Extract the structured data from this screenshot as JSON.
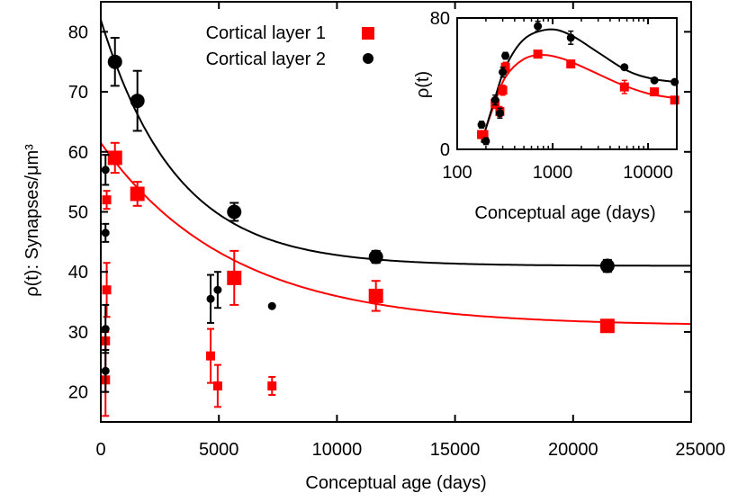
{
  "chart_data": [
    {
      "type": "scatter",
      "role": "main",
      "xlabel": "Conceptual age (days)",
      "ylabel": "ρ(t): Synapses/μm³",
      "xlim": [
        0,
        25000
      ],
      "ylim": [
        15,
        85
      ],
      "xticks": [
        0,
        5000,
        10000,
        15000,
        20000,
        25000
      ],
      "yticks": [
        20,
        30,
        40,
        50,
        60,
        70,
        80
      ],
      "grid": false,
      "legend_position": "top",
      "series": [
        {
          "name": "Cortical layer 1",
          "color": "#ff0000",
          "marker": "square",
          "points": [
            {
              "x": 200,
              "y": 22,
              "err": 6.0,
              "size": "small"
            },
            {
              "x": 200,
              "y": 28.5,
              "err": 1.5,
              "size": "small"
            },
            {
              "x": 250,
              "y": 37,
              "err": 4.5,
              "size": "small"
            },
            {
              "x": 250,
              "y": 52,
              "err": 1.5,
              "size": "small"
            },
            {
              "x": 4650,
              "y": 26,
              "err": 4.5,
              "size": "small"
            },
            {
              "x": 4950,
              "y": 21,
              "err": 3.5,
              "size": "small"
            },
            {
              "x": 7250,
              "y": 21,
              "err": 1.5,
              "size": "small"
            },
            {
              "x": 600,
              "y": 59,
              "err": 2.5,
              "size": "large"
            },
            {
              "x": 1550,
              "y": 53,
              "err": 2.0,
              "size": "large"
            },
            {
              "x": 5650,
              "y": 39,
              "err": 4.5,
              "size": "large"
            },
            {
              "x": 11650,
              "y": 36,
              "err": 2.5,
              "size": "large"
            },
            {
              "x": 21450,
              "y": 31,
              "err": 1.0,
              "size": "large"
            }
          ],
          "fit": {
            "asymptote": 31,
            "amplitude": 30.5,
            "decay_days": 5500
          }
        },
        {
          "name": "Cortical layer 2",
          "color": "#000000",
          "marker": "circle",
          "points": [
            {
              "x": 200,
              "y": 23.5,
              "err": 3.5,
              "size": "small"
            },
            {
              "x": 200,
              "y": 30.5,
              "err": 4.0,
              "size": "small"
            },
            {
              "x": 200,
              "y": 46.5,
              "err": 1.5,
              "size": "small"
            },
            {
              "x": 200,
              "y": 57,
              "err": 2.5,
              "size": "small"
            },
            {
              "x": 4650,
              "y": 35.5,
              "err": 4.0,
              "size": "small"
            },
            {
              "x": 4950,
              "y": 37,
              "err": 3.0,
              "size": "small"
            },
            {
              "x": 7250,
              "y": 34.3,
              "err": 0,
              "size": "small"
            },
            {
              "x": 600,
              "y": 75,
              "err": 4.0,
              "size": "large"
            },
            {
              "x": 1550,
              "y": 68.5,
              "err": 5.0,
              "size": "large"
            },
            {
              "x": 5650,
              "y": 50,
              "err": 1.5,
              "size": "large"
            },
            {
              "x": 11650,
              "y": 42.5,
              "err": 1.0,
              "size": "large"
            },
            {
              "x": 21450,
              "y": 41,
              "err": 1.0,
              "size": "large"
            }
          ],
          "fit": {
            "asymptote": 41,
            "amplitude": 41,
            "decay_days": 3200
          }
        }
      ]
    },
    {
      "type": "scatter",
      "role": "inset",
      "xlabel": "Conceptual age (days)",
      "ylabel": "ρ(t)",
      "xscale": "log",
      "xlim": [
        100,
        20000
      ],
      "ylim": [
        0,
        80
      ],
      "xticks": [
        100,
        1000,
        10000
      ],
      "xticklabels": [
        "100",
        "1000",
        "10000"
      ],
      "yticks": [
        0,
        80
      ],
      "grid": false,
      "series": [
        {
          "name": "Cortical layer 1",
          "color": "#ff0000",
          "marker": "square",
          "points": [
            {
              "x": 180,
              "y": 9,
              "err": 2
            },
            {
              "x": 190,
              "y": 9,
              "err": 1
            },
            {
              "x": 250,
              "y": 28,
              "err": 3
            },
            {
              "x": 280,
              "y": 23,
              "err": 3
            },
            {
              "x": 300,
              "y": 36,
              "err": 3
            },
            {
              "x": 320,
              "y": 50,
              "err": 3
            },
            {
              "x": 700,
              "y": 58,
              "err": 2
            },
            {
              "x": 1550,
              "y": 52,
              "err": 2
            },
            {
              "x": 5650,
              "y": 38,
              "err": 4
            },
            {
              "x": 11650,
              "y": 35,
              "err": 2
            },
            {
              "x": 19000,
              "y": 30,
              "err": 1
            }
          ],
          "fit": [
            [
              180,
              5
            ],
            [
              240,
              26
            ],
            [
              320,
              44
            ],
            [
              500,
              55
            ],
            [
              800,
              57.5
            ],
            [
              1300,
              55
            ],
            [
              2500,
              48
            ],
            [
              5000,
              40
            ],
            [
              10000,
              34
            ],
            [
              20000,
              31
            ]
          ]
        },
        {
          "name": "Cortical layer 2",
          "color": "#000000",
          "marker": "circle",
          "points": [
            {
              "x": 180,
              "y": 15,
              "err": 2
            },
            {
              "x": 200,
              "y": 5,
              "err": 2
            },
            {
              "x": 250,
              "y": 30,
              "err": 3
            },
            {
              "x": 280,
              "y": 22,
              "err": 3
            },
            {
              "x": 300,
              "y": 47,
              "err": 3
            },
            {
              "x": 320,
              "y": 57,
              "err": 2
            },
            {
              "x": 700,
              "y": 75,
              "err": 3
            },
            {
              "x": 1550,
              "y": 68,
              "err": 4
            },
            {
              "x": 5650,
              "y": 50,
              "err": 1
            },
            {
              "x": 11650,
              "y": 42,
              "err": 1
            },
            {
              "x": 19000,
              "y": 41,
              "err": 1
            }
          ],
          "fit": [
            [
              180,
              4
            ],
            [
              240,
              28
            ],
            [
              320,
              50
            ],
            [
              500,
              67
            ],
            [
              900,
              73
            ],
            [
              1500,
              70
            ],
            [
              3000,
              59
            ],
            [
              6000,
              48
            ],
            [
              11000,
              43
            ],
            [
              20000,
              41
            ]
          ]
        }
      ]
    }
  ]
}
